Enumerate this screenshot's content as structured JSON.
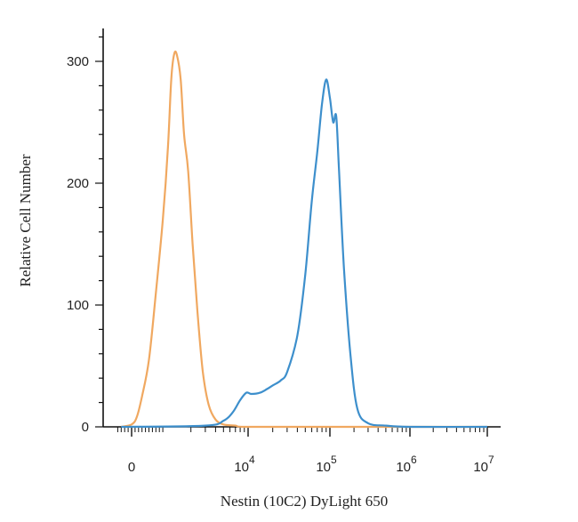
{
  "chart_data": {
    "type": "line",
    "title": "",
    "xlabel": "Nestin (10C2) DyLight 650",
    "ylabel": "Relative Cell Number",
    "x_scale": "biexponential",
    "x_ticks": [
      {
        "value": 0,
        "base": "0",
        "exp": ""
      },
      {
        "value": 10000,
        "base": "10",
        "exp": "4"
      },
      {
        "value": 100000,
        "base": "10",
        "exp": "5"
      },
      {
        "value": 1000000,
        "base": "10",
        "exp": "6"
      },
      {
        "value": 10000000,
        "base": "10",
        "exp": "7"
      }
    ],
    "y_ticks": [
      "0",
      "100",
      "200",
      "300"
    ],
    "ylim": [
      0,
      330
    ],
    "grid": false,
    "legend": "none",
    "series": [
      {
        "color": "#f0a860",
        "x": [
          -300,
          0,
          150,
          300,
          500,
          700,
          900,
          1050,
          1150,
          1250,
          1350,
          1500,
          1650,
          1850,
          2100,
          2400,
          2800,
          3300,
          4000,
          5000,
          7000,
          10000,
          100000,
          10000000
        ],
        "y": [
          0,
          2,
          8,
          25,
          55,
          110,
          170,
          230,
          285,
          306,
          305,
          285,
          240,
          210,
          150,
          95,
          45,
          18,
          6,
          2,
          1,
          0,
          0,
          0
        ]
      },
      {
        "color": "#3d8fcc",
        "x": [
          -300,
          3000,
          5000,
          6500,
          8000,
          9500,
          11000,
          14000,
          17000,
          20000,
          25000,
          30000,
          40000,
          50000,
          60000,
          70000,
          80000,
          90000,
          100000,
          110000,
          120000,
          130000,
          150000,
          180000,
          220000,
          300000,
          500000,
          1000000,
          10000000
        ],
        "y": [
          0,
          1,
          5,
          12,
          22,
          28,
          27,
          28,
          31,
          34,
          38,
          45,
          75,
          125,
          185,
          225,
          265,
          285,
          270,
          250,
          255,
          210,
          130,
          60,
          15,
          3,
          1,
          0,
          0
        ]
      }
    ]
  }
}
